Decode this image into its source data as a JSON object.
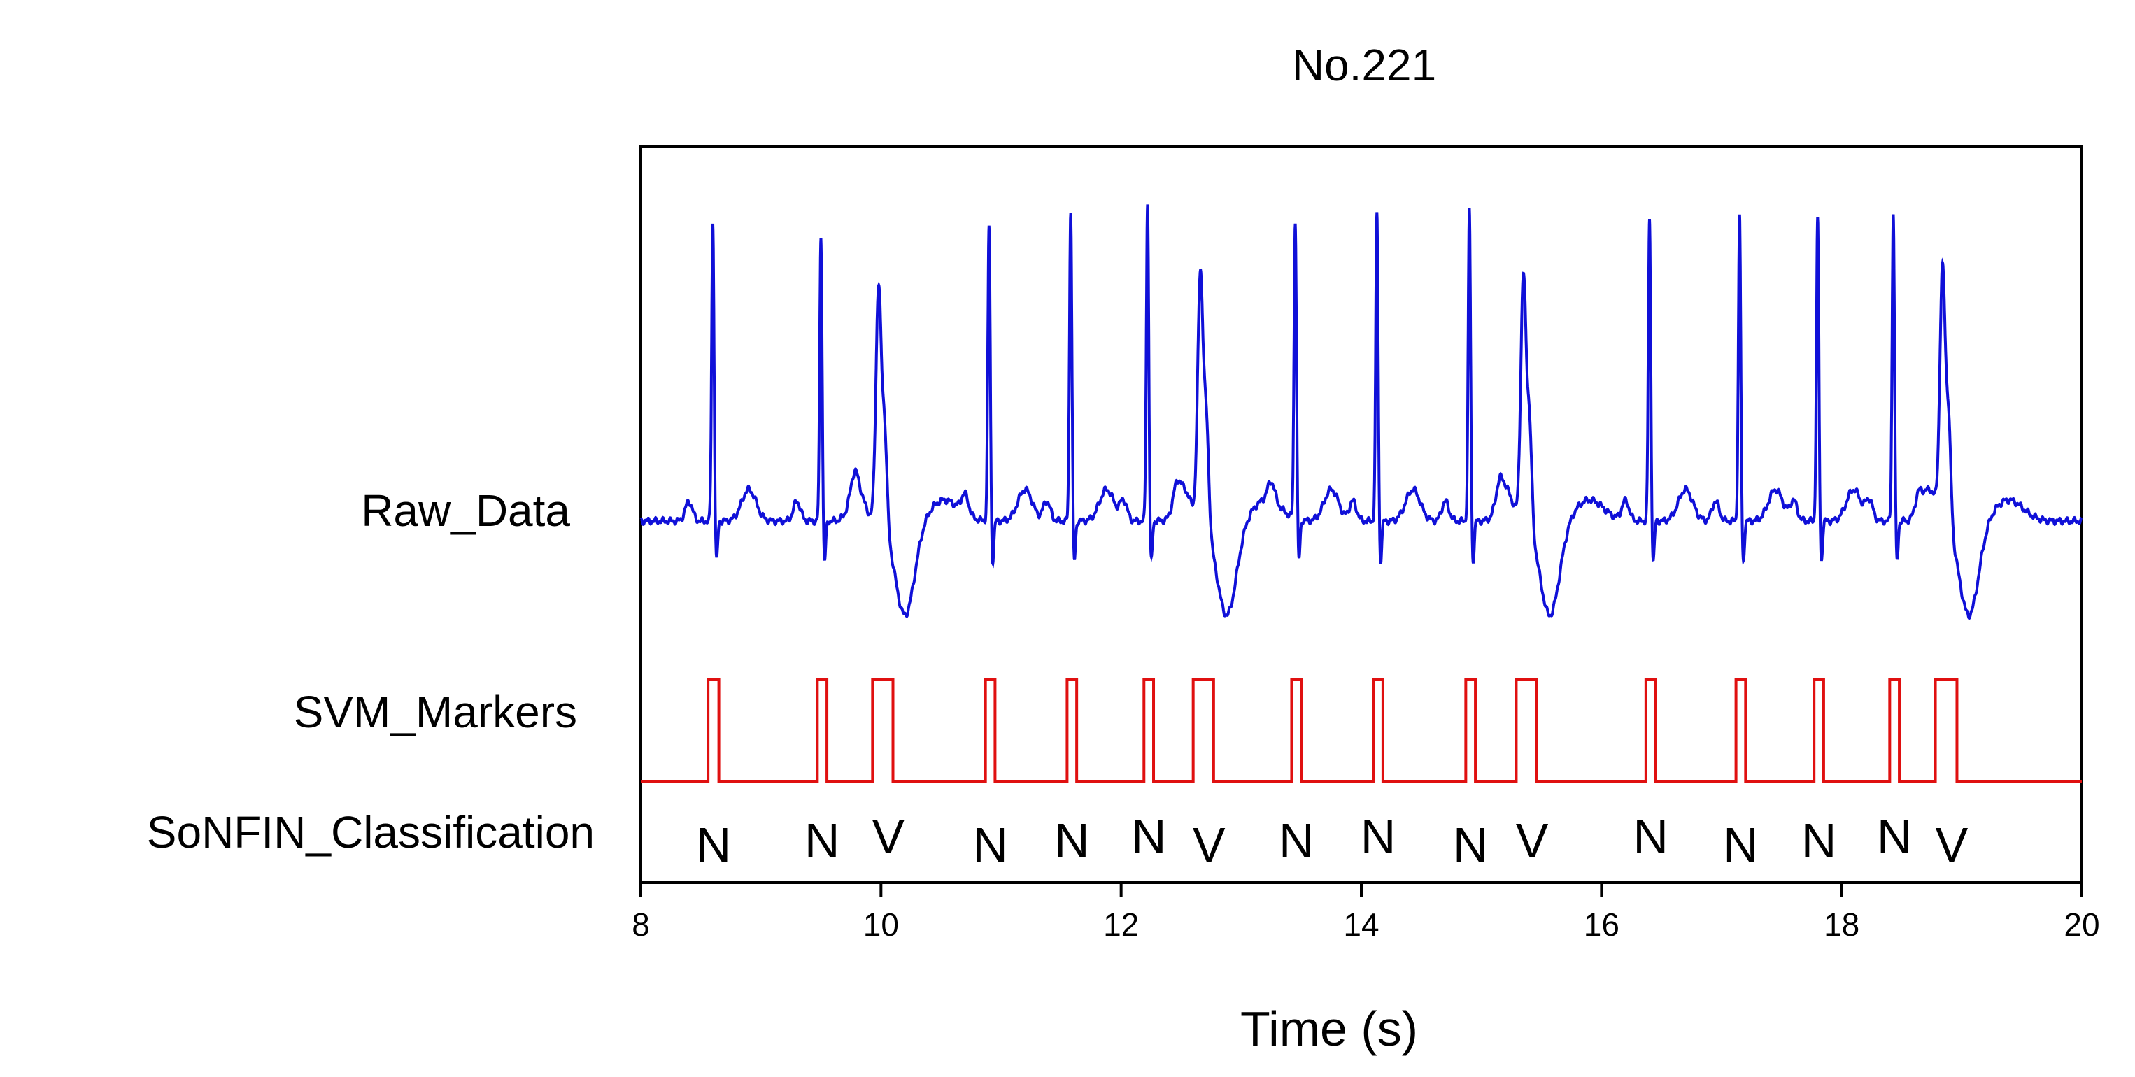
{
  "chart_data": {
    "type": "line",
    "title": "No.221",
    "xlabel": "Time (s)",
    "xlim": [
      8,
      20
    ],
    "xticks": [
      8,
      10,
      12,
      14,
      16,
      18,
      20
    ],
    "row_labels": {
      "raw": "Raw_Data",
      "svm": "SVM_Markers",
      "sonfin": "SoNFIN_Classification"
    },
    "colors": {
      "raw": "#1010d8",
      "svm": "#e01010",
      "axis": "#000000"
    },
    "beats": [
      {
        "t": 8.6,
        "cls": "N",
        "peak": 0.92,
        "markerStart": 8.56,
        "markerEnd": 8.65
      },
      {
        "t": 9.5,
        "cls": "N",
        "peak": 0.88,
        "markerStart": 9.47,
        "markerEnd": 9.55
      },
      {
        "t": 9.98,
        "cls": "V",
        "peak": 0.72,
        "markerStart": 9.93,
        "markerEnd": 10.1
      },
      {
        "t": 10.9,
        "cls": "N",
        "peak": 0.91,
        "markerStart": 10.87,
        "markerEnd": 10.95
      },
      {
        "t": 11.58,
        "cls": "N",
        "peak": 0.96,
        "markerStart": 11.55,
        "markerEnd": 11.63
      },
      {
        "t": 12.22,
        "cls": "N",
        "peak": 0.98,
        "markerStart": 12.19,
        "markerEnd": 12.27
      },
      {
        "t": 12.66,
        "cls": "V",
        "peak": 0.76,
        "markerStart": 12.6,
        "markerEnd": 12.77
      },
      {
        "t": 13.45,
        "cls": "N",
        "peak": 0.92,
        "markerStart": 13.42,
        "markerEnd": 13.5
      },
      {
        "t": 14.13,
        "cls": "N",
        "peak": 0.95,
        "markerStart": 14.1,
        "markerEnd": 14.18
      },
      {
        "t": 14.9,
        "cls": "N",
        "peak": 0.96,
        "markerStart": 14.87,
        "markerEnd": 14.95
      },
      {
        "t": 15.35,
        "cls": "V",
        "peak": 0.75,
        "markerStart": 15.29,
        "markerEnd": 15.46
      },
      {
        "t": 16.4,
        "cls": "N",
        "peak": 0.93,
        "markerStart": 16.37,
        "markerEnd": 16.45
      },
      {
        "t": 17.15,
        "cls": "N",
        "peak": 0.94,
        "markerStart": 17.12,
        "markerEnd": 17.2
      },
      {
        "t": 17.8,
        "cls": "N",
        "peak": 0.93,
        "markerStart": 17.77,
        "markerEnd": 17.85
      },
      {
        "t": 18.43,
        "cls": "N",
        "peak": 0.95,
        "markerStart": 18.4,
        "markerEnd": 18.48
      },
      {
        "t": 18.84,
        "cls": "V",
        "peak": 0.76,
        "markerStart": 18.78,
        "markerEnd": 18.96
      }
    ]
  }
}
